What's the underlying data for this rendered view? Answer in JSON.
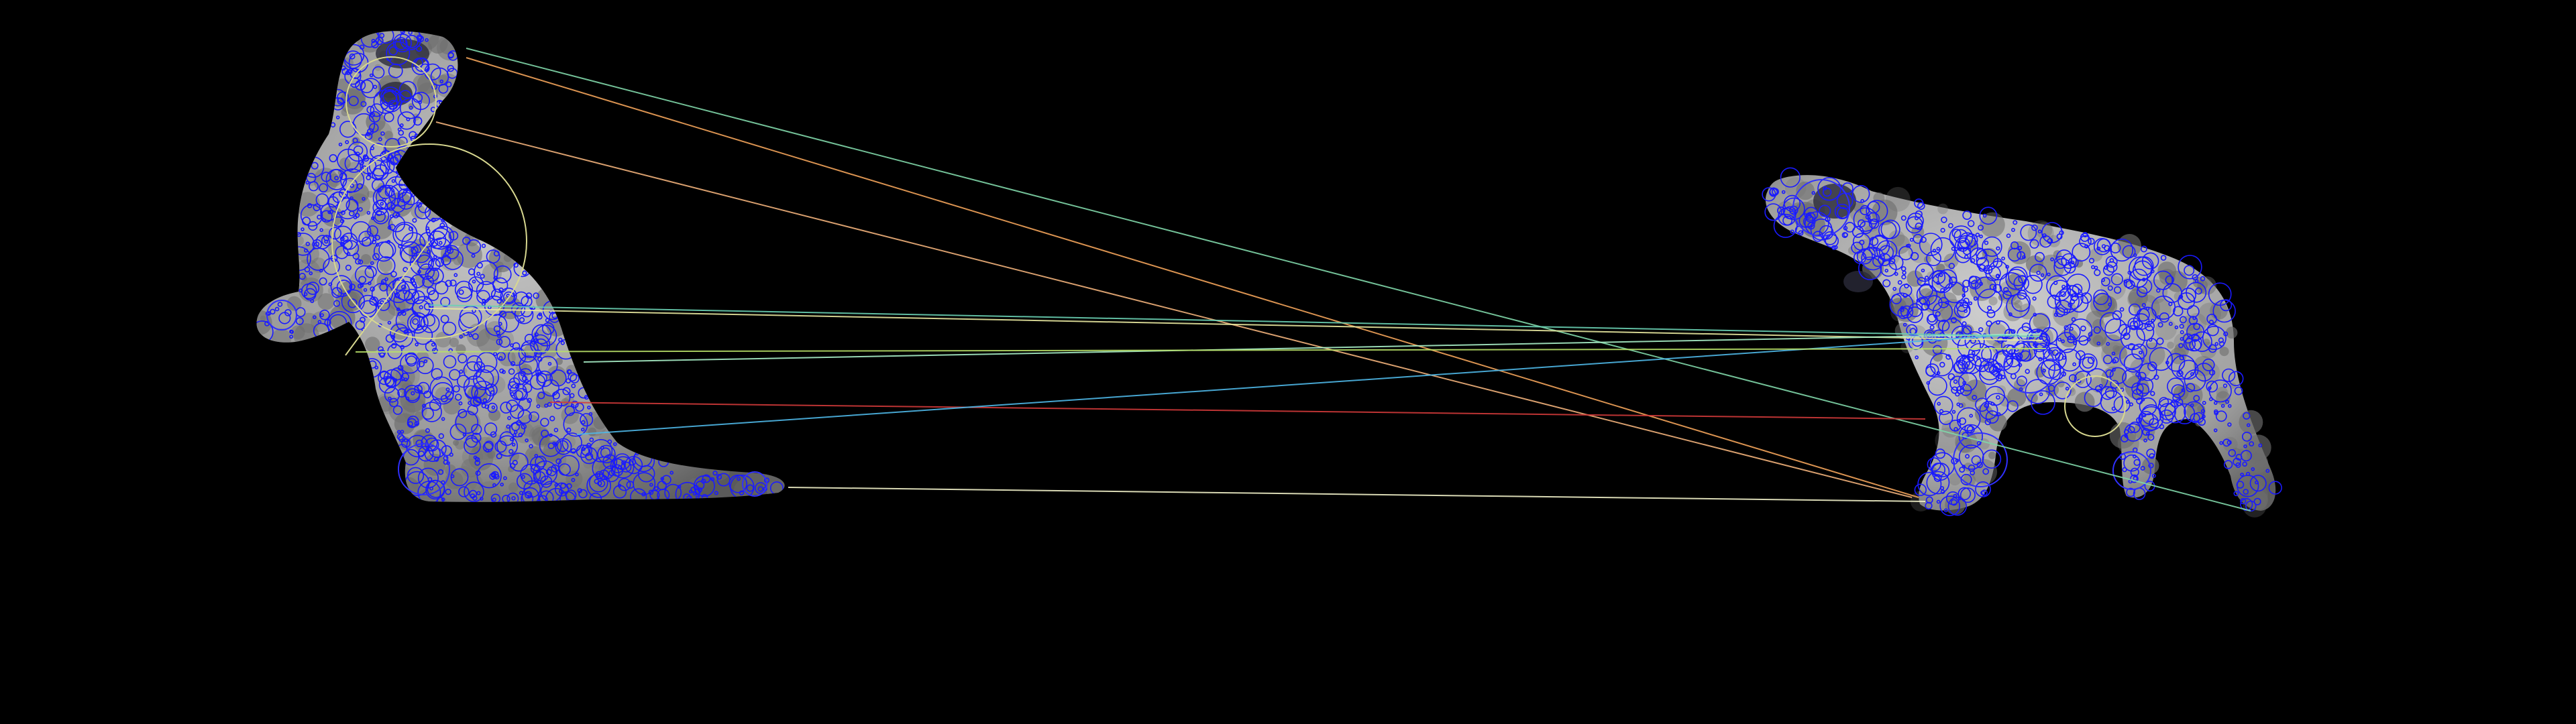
{
  "scene": {
    "background_color": "#000000",
    "object_fill_color": "#b9b9b9",
    "object_shadow_color": "#6e6e6e",
    "keypoint_color": "#1a1aff",
    "left_object": "bear-sitting",
    "right_object": "bear-standing"
  },
  "matches": [
    {
      "color": "#7fd6a8"
    },
    {
      "color": "#f2a35a"
    },
    {
      "color": "#f0b07a"
    },
    {
      "color": "#e8e8a0"
    },
    {
      "color": "#a8f0c8"
    },
    {
      "color": "#d23a3a"
    },
    {
      "color": "#4fb8e8"
    },
    {
      "color": "#f0f0c8"
    },
    {
      "color": "#b8e068"
    },
    {
      "color": "#6ad2b4"
    }
  ]
}
